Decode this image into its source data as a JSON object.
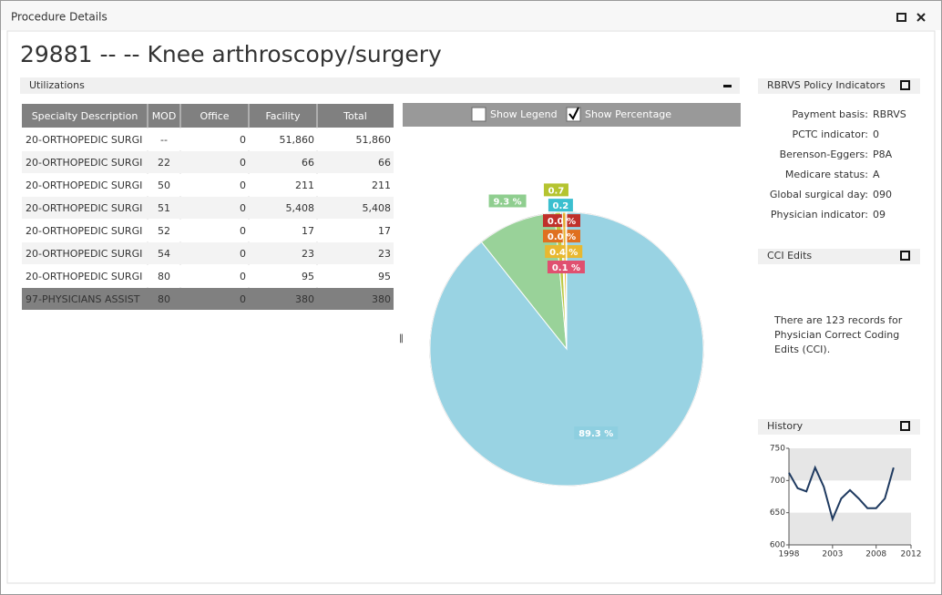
{
  "window": {
    "title": "Procedure Details"
  },
  "heading": "29881 -- -- Knee arthroscopy/surgery",
  "utilizations": {
    "title": "Utilizations",
    "table": {
      "columns": [
        "Specialty Description",
        "MOD",
        "Office",
        "Facility",
        "Total"
      ],
      "rows": [
        [
          "20-ORTHOPEDIC SURGI",
          "--",
          "0",
          "51,860",
          "51,860"
        ],
        [
          "20-ORTHOPEDIC SURGI",
          "22",
          "0",
          "66",
          "66"
        ],
        [
          "20-ORTHOPEDIC SURGI",
          "50",
          "0",
          "211",
          "211"
        ],
        [
          "20-ORTHOPEDIC SURGI",
          "51",
          "0",
          "5,408",
          "5,408"
        ],
        [
          "20-ORTHOPEDIC SURGI",
          "52",
          "0",
          "17",
          "17"
        ],
        [
          "20-ORTHOPEDIC SURGI",
          "54",
          "0",
          "23",
          "23"
        ],
        [
          "20-ORTHOPEDIC SURGI",
          "80",
          "0",
          "95",
          "95"
        ],
        [
          "97-PHYSICIANS ASSIST",
          "80",
          "0",
          "380",
          "380"
        ]
      ]
    },
    "controls": {
      "show_legend": "Show Legend",
      "show_percentage": "Show Percentage"
    }
  },
  "chart_data": [
    {
      "type": "pie",
      "values": [
        89.3,
        9.3,
        0.7,
        0.2,
        0.0,
        0.0,
        0.4,
        0.1
      ],
      "value_labels": [
        "89.3 %",
        "9.3 %",
        "0.7",
        "0.2",
        "0.0 %",
        "0.0 %",
        "0.4 %",
        "0.1 %"
      ],
      "colors": [
        "#8ecfe0",
        "#8fce8f",
        "#b5c430",
        "#3bbfcf",
        "#c0302a",
        "#e07020",
        "#e8b830",
        "#e05070"
      ]
    },
    {
      "type": "line",
      "color": "#1f3a60",
      "x": [
        1998,
        1999,
        2000,
        2001,
        2002,
        2003,
        2004,
        2005,
        2006,
        2007,
        2008,
        2009,
        2010
      ],
      "values": [
        712,
        688,
        683,
        720,
        690,
        640,
        672,
        685,
        672,
        657,
        657,
        672,
        720
      ],
      "xlim": [
        1998,
        2012
      ],
      "xticks": [
        1998,
        2003,
        2008,
        2012
      ],
      "ylim": [
        600,
        750
      ],
      "yticks": [
        600,
        650,
        700,
        750
      ]
    }
  ],
  "rbrvs": {
    "title": "RBRVS Policy Indicators",
    "items": [
      {
        "label": "Payment basis:",
        "value": "RBRVS"
      },
      {
        "label": "PCTC indicator:",
        "value": "0"
      },
      {
        "label": "Berenson-Eggers:",
        "value": "P8A"
      },
      {
        "label": "Medicare status:",
        "value": "A"
      },
      {
        "label": "Global surgical day:",
        "value": "090"
      },
      {
        "label": "Physician indicator:",
        "value": "09"
      }
    ]
  },
  "cci": {
    "title": "CCI Edits",
    "lines": [
      "There are 123 records for",
      "Physician Correct Coding",
      "Edits (CCI)."
    ]
  },
  "history": {
    "title": "History"
  }
}
